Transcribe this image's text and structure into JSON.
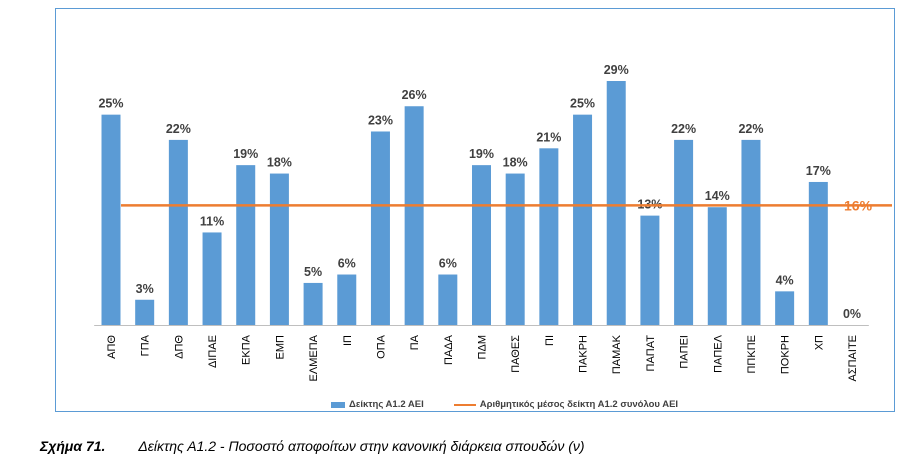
{
  "chart_data": {
    "type": "bar",
    "categories": [
      "ΑΠΘ",
      "ΓΠΑ",
      "ΔΠΘ",
      "ΔΙΠΑΕ",
      "ΕΚΠΑ",
      "ΕΜΠ",
      "ΕΛΜΕΠΑ",
      "ΙΠ",
      "ΟΠΑ",
      "ΠΑ",
      "ΠΑΔΑ",
      "ΠΔΜ",
      "ΠΑΘΕΣ",
      "ΠΙ",
      "ΠΑΚΡΗ",
      "ΠΑΜΑΚ",
      "ΠΑΠΑΤ",
      "ΠΑΠΕΙ",
      "ΠΑΠΕΛ",
      "ΠΠΚΠΕ",
      "ΠΟΚΡΗ",
      "ΧΠ",
      "ΑΣΠΑΙΤΕ"
    ],
    "series": [
      {
        "name": "Δείκτης Α1.2 ΑΕΙ",
        "values": [
          25,
          3,
          22,
          11,
          19,
          18,
          5,
          6,
          23,
          26,
          6,
          19,
          18,
          21,
          25,
          29,
          13,
          22,
          14,
          22,
          4,
          17,
          0
        ],
        "labels": [
          "25%",
          "3%",
          "22%",
          "11%",
          "19%",
          "18%",
          "5%",
          "6%",
          "23%",
          "26%",
          "6%",
          "19%",
          "18%",
          "21%",
          "25%",
          "29%",
          "13%",
          "22%",
          "14%",
          "22%",
          "4%",
          "17%",
          "0%"
        ]
      }
    ],
    "average": {
      "name": "Αριθμητικός μέσος δείκτη Α1.2 συνόλου ΑΕΙ",
      "value": 16,
      "label": "16%"
    },
    "ylim": [
      0,
      30
    ],
    "legend_position": "bottom",
    "grid": false,
    "colors": {
      "bar": "#5b9bd5",
      "average_line": "#ed7d31",
      "frame": "#5b9bd5"
    }
  },
  "legend": {
    "bar_label": "Δείκτης Α1.2 ΑΕΙ",
    "line_label": "Αριθμητικός μέσος δείκτη Α1.2 συνόλου ΑΕΙ"
  },
  "caption": {
    "number": "Σχήμα 71.",
    "text": "Δείκτης Α1.2 - Ποσοστό αποφοίτων στην κανονική διάρκεια σπουδών (ν)"
  }
}
